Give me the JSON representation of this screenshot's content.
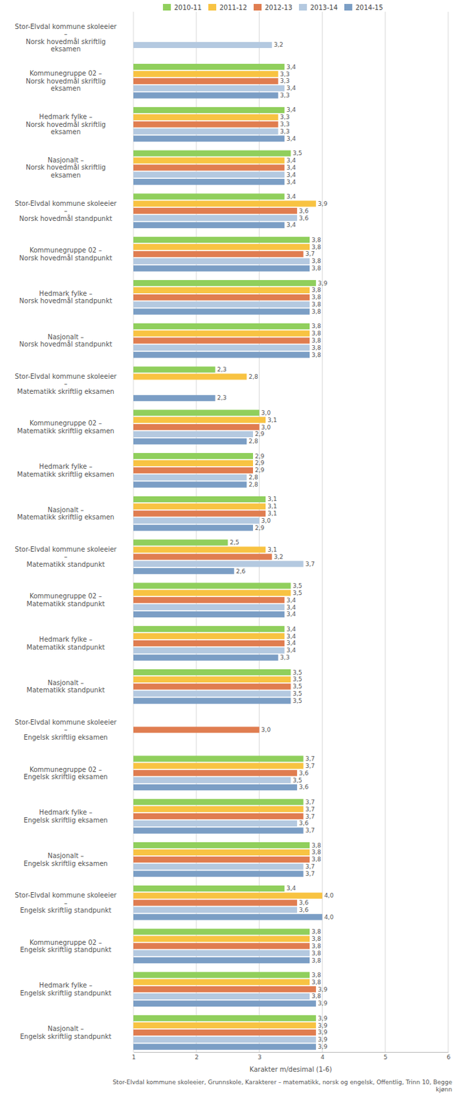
{
  "chart_data": {
    "type": "bar",
    "orientation": "horizontal",
    "data_labels": true,
    "grid": true,
    "legend": "top",
    "xlabel": "Karakter m/desimal (1-6)",
    "annotations": [
      "Stor-Elvdal kommune skoleeier, Grunnskole, Karakterer – matematikk, norsk og engelsk, Offentlig, Trinn 10, Begge\nkjønn"
    ],
    "xlim": [
      1,
      6
    ],
    "xticks": [
      1,
      2,
      3,
      4,
      5,
      6
    ],
    "categories": [
      "Stor-Elvdal kommune skoleeier\n–\nNorsk hovedmål skriftlig\neksamen",
      "Kommunegruppe 02 –\nNorsk hovedmål skriftlig\neksamen",
      "Hedmark fylke –\nNorsk hovedmål skriftlig\neksamen",
      "Nasjonalt –\nNorsk hovedmål skriftlig\neksamen",
      "Stor-Elvdal kommune skoleeier\n–\nNorsk hovedmål standpunkt",
      "Kommunegruppe 02 –\nNorsk hovedmål standpunkt",
      "Hedmark fylke –\nNorsk hovedmål standpunkt",
      "Nasjonalt –\nNorsk hovedmål standpunkt",
      "Stor-Elvdal kommune skoleeier\n–\nMatematikk skriftlig eksamen",
      "Kommunegruppe 02 –\nMatematikk skriftlig eksamen",
      "Hedmark fylke –\nMatematikk skriftlig eksamen",
      "Nasjonalt –\nMatematikk skriftlig eksamen",
      "Stor-Elvdal kommune skoleeier\n–\nMatematikk standpunkt",
      "Kommunegruppe 02 –\nMatematikk standpunkt",
      "Hedmark fylke –\nMatematikk standpunkt",
      "Nasjonalt –\nMatematikk standpunkt",
      "Stor-Elvdal kommune skoleeier\n–\nEngelsk skriftlig eksamen",
      "Kommunegruppe 02 –\nEngelsk skriftlig eksamen",
      "Hedmark fylke –\nEngelsk skriftlig eksamen",
      "Nasjonalt –\nEngelsk skriftlig eksamen",
      "Stor-Elvdal kommune skoleeier\n–\nEngelsk skriftlig standpunkt",
      "Kommunegruppe 02 –\nEngelsk skriftlig standpunkt",
      "Hedmark fylke –\nEngelsk skriftlig standpunkt",
      "Nasjonalt –\nEngelsk skriftlig standpunkt"
    ],
    "series": [
      {
        "name": "2010-11",
        "color": "#90cf5c",
        "values": [
          null,
          3.4,
          3.4,
          3.5,
          3.4,
          3.8,
          3.9,
          3.8,
          2.3,
          3.0,
          2.9,
          3.1,
          2.5,
          3.5,
          3.4,
          3.5,
          null,
          3.7,
          3.7,
          3.8,
          3.4,
          3.8,
          3.8,
          3.9
        ],
        "value_labels": [
          null,
          "3,4",
          "3,4",
          "3,5",
          "3,4",
          "3,8",
          "3,9",
          "3,8",
          "2,3",
          "3,0",
          "2,9",
          "3,1",
          "2,5",
          "3,5",
          "3,4",
          "3,5",
          null,
          "3,7",
          "3,7",
          "3,8",
          "3,4",
          "3,8",
          "3,8",
          "3,9"
        ]
      },
      {
        "name": "2011-12",
        "color": "#f8c342",
        "values": [
          null,
          3.3,
          3.3,
          3.4,
          3.9,
          3.8,
          3.8,
          3.8,
          2.8,
          3.1,
          2.9,
          3.1,
          3.1,
          3.5,
          3.4,
          3.5,
          null,
          3.7,
          3.7,
          3.8,
          4.0,
          3.8,
          3.8,
          3.9
        ],
        "value_labels": [
          null,
          "3,3",
          "3,3",
          "3,4",
          "3,9",
          "3,8",
          "3,8",
          "3,8",
          "2,8",
          "3,1",
          "2,9",
          "3,1",
          "3,1",
          "3,5",
          "3,4",
          "3,5",
          null,
          "3,7",
          "3,7",
          "3,8",
          "4,0",
          "3,8",
          "3,8",
          "3,9"
        ]
      },
      {
        "name": "2012-13",
        "color": "#e07d50",
        "values": [
          null,
          3.3,
          3.3,
          3.4,
          3.6,
          3.7,
          3.8,
          3.8,
          null,
          3.0,
          2.9,
          3.1,
          3.2,
          3.4,
          3.4,
          3.5,
          3.0,
          3.6,
          3.7,
          3.8,
          3.6,
          3.8,
          3.9,
          3.9
        ],
        "value_labels": [
          null,
          "3,3",
          "3,3",
          "3,4",
          "3,6",
          "3,7",
          "3,8",
          "3,8",
          null,
          "3,0",
          "2,9",
          "3,1",
          "3,2",
          "3,4",
          "3,4",
          "3,5",
          "3,0",
          "3,6",
          "3,7",
          "3,8",
          "3,6",
          "3,8",
          "3,9",
          "3,9"
        ]
      },
      {
        "name": "2013-14",
        "color": "#b4c9e0",
        "values": [
          3.2,
          3.4,
          3.3,
          3.4,
          3.6,
          3.8,
          3.8,
          3.8,
          null,
          2.9,
          2.8,
          3.0,
          3.7,
          3.4,
          3.4,
          3.5,
          null,
          3.5,
          3.6,
          3.7,
          3.6,
          3.8,
          3.8,
          3.9
        ],
        "value_labels": [
          "3,2",
          "3,4",
          "3,3",
          "3,4",
          "3,6",
          "3,8",
          "3,8",
          "3,8",
          null,
          "2,9",
          "2,8",
          "3,0",
          "3,7",
          "3,4",
          "3,4",
          "3,5",
          null,
          "3,5",
          "3,6",
          "3,7",
          "3,6",
          "3,8",
          "3,8",
          "3,9"
        ]
      },
      {
        "name": "2014-15",
        "color": "#7b9ec5",
        "values": [
          null,
          3.3,
          3.4,
          3.4,
          3.4,
          3.8,
          3.8,
          3.8,
          2.3,
          2.8,
          2.8,
          2.9,
          2.6,
          3.4,
          3.3,
          3.5,
          null,
          3.6,
          3.7,
          3.7,
          4.0,
          3.8,
          3.9,
          3.9
        ],
        "value_labels": [
          null,
          "3,3",
          "3,4",
          "3,4",
          "3,4",
          "3,8",
          "3,8",
          "3,8",
          "2,3",
          "2,8",
          "2,8",
          "2,9",
          "2,6",
          "3,4",
          "3,3",
          "3,5",
          null,
          "3,6",
          "3,7",
          "3,7",
          "4,0",
          "3,8",
          "3,9",
          "3,9"
        ]
      }
    ]
  }
}
